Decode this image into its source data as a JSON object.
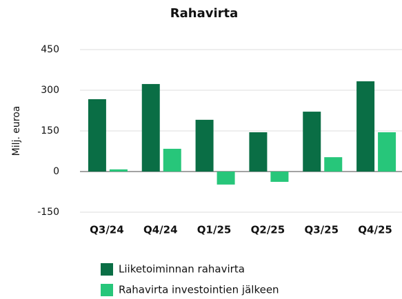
{
  "chart_data": {
    "type": "bar",
    "title": "Rahavirta",
    "y_label": "Milj. euroa",
    "categories": [
      "Q3/24",
      "Q4/24",
      "Q1/25",
      "Q2/25",
      "Q3/25",
      "Q4/25"
    ],
    "series": [
      {
        "name": "Liiketoiminnan rahavirta",
        "color": "#0a6e45",
        "values": [
          267,
          323,
          191,
          145,
          221,
          333
        ]
      },
      {
        "name": "Rahavirta investointien jälkeen",
        "color": "#27c67a",
        "values": [
          8,
          84,
          -48,
          -38,
          53,
          145
        ]
      }
    ],
    "ylim": [
      -150,
      450
    ],
    "yticks": [
      -150,
      0,
      150,
      300,
      450
    ],
    "grid": true
  }
}
